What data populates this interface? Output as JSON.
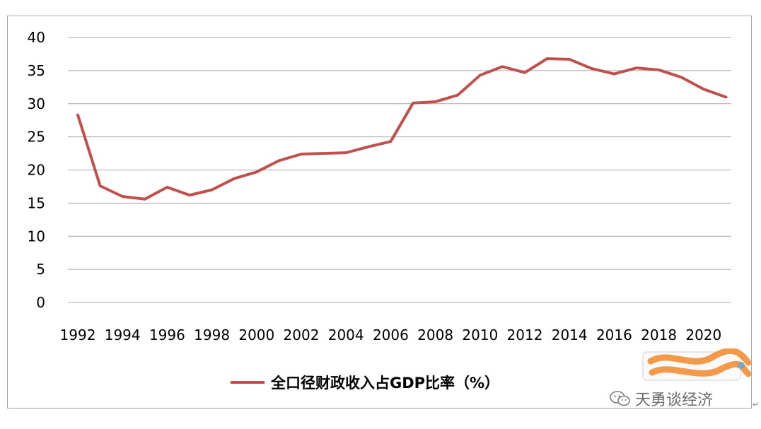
{
  "chart_data": {
    "type": "line",
    "x": [
      1992,
      1993,
      1994,
      1995,
      1996,
      1997,
      1998,
      1999,
      2000,
      2001,
      2002,
      2003,
      2004,
      2005,
      2006,
      2007,
      2008,
      2009,
      2010,
      2011,
      2012,
      2013,
      2014,
      2015,
      2016,
      2017,
      2018,
      2019,
      2020,
      2021
    ],
    "series": [
      {
        "name": "全口径财政收入占GDP比率（%）",
        "color": "#c0504d",
        "values": [
          28.3,
          17.6,
          16.0,
          15.6,
          17.4,
          16.2,
          17.0,
          18.7,
          19.7,
          21.4,
          22.4,
          22.5,
          22.6,
          23.5,
          24.3,
          30.1,
          30.3,
          31.3,
          34.3,
          35.6,
          34.7,
          36.8,
          36.7,
          35.3,
          34.5,
          35.4,
          35.1,
          34.0,
          32.2,
          31.0
        ]
      }
    ],
    "x_tick_labels": [
      "1992",
      "1994",
      "1996",
      "1998",
      "2000",
      "2002",
      "2004",
      "2006",
      "2008",
      "2010",
      "2012",
      "2014",
      "2016",
      "2018",
      "2020"
    ],
    "y_tick_labels": [
      "0",
      "5",
      "10",
      "15",
      "20",
      "25",
      "30",
      "35",
      "40"
    ],
    "ylim": [
      0,
      40
    ],
    "xlim": [
      1992,
      2021
    ],
    "grid": true,
    "legend": "bottom",
    "title": "",
    "xlabel": "",
    "ylabel": ""
  },
  "watermark": {
    "text": "天勇谈经济",
    "icon": "wechat-icon"
  },
  "colors": {
    "line": "#c0504d",
    "grid": "#a6a6a6"
  }
}
